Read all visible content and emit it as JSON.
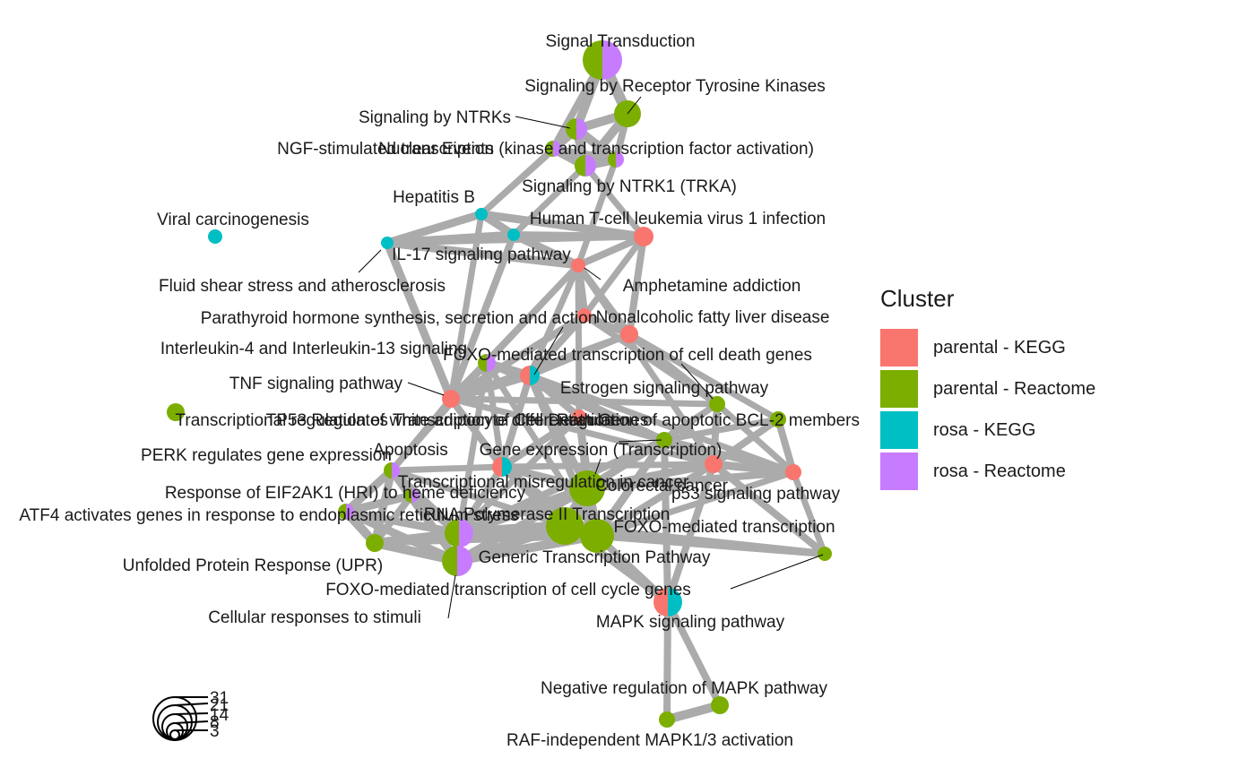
{
  "legend": {
    "title": "Cluster",
    "items": [
      {
        "label": "parental - KEGG",
        "color": "#F8766D"
      },
      {
        "label": "parental - Reactome",
        "color": "#7CAE00"
      },
      {
        "label": "rosa - KEGG",
        "color": "#00BFC4"
      },
      {
        "label": "rosa - Reactome",
        "color": "#C77CFF"
      }
    ]
  },
  "size_legend": {
    "values": [
      "31",
      "21",
      "14",
      "8",
      "3"
    ]
  },
  "edge_color": "#ABABAB",
  "nodes": [
    {
      "id": "signal_transduction",
      "label": "Signal Transduction",
      "slices": [
        [
          "rosa - Reactome",
          1
        ],
        [
          "parental - Reactome",
          1
        ]
      ]
    },
    {
      "id": "rtk",
      "label": "Signaling by Receptor Tyrosine Kinases",
      "slices": [
        [
          "parental - Reactome",
          1
        ]
      ]
    },
    {
      "id": "ntrks",
      "label": "Signaling by NTRKs",
      "slices": [
        [
          "rosa - Reactome",
          1
        ],
        [
          "parental - Reactome",
          1
        ]
      ]
    },
    {
      "id": "nuclear_events",
      "label": "Nuclear Events (kinase and transcription factor activation)",
      "slices": [
        [
          "rosa - Reactome",
          1
        ],
        [
          "parental - Reactome",
          1
        ]
      ]
    },
    {
      "id": "ngf",
      "label": "NGF-stimulated transcription",
      "slices": [
        [
          "rosa - Reactome",
          1
        ],
        [
          "parental - Reactome",
          1
        ]
      ]
    },
    {
      "id": "ntrk1",
      "label": "Signaling by NTRK1 (TRKA)",
      "slices": [
        [
          "rosa - Reactome",
          1
        ],
        [
          "parental - Reactome",
          1
        ]
      ]
    },
    {
      "id": "hepatitis_b",
      "label": "Hepatitis B",
      "slices": [
        [
          "rosa - KEGG",
          1
        ]
      ]
    },
    {
      "id": "htlv",
      "label": "Human T-cell leukemia virus 1 infection",
      "slices": [
        [
          "rosa - KEGG",
          1
        ]
      ]
    },
    {
      "id": "viral_carcinogenesis",
      "label": "Viral carcinogenesis",
      "slices": [
        [
          "rosa - KEGG",
          1
        ]
      ]
    },
    {
      "id": "il17",
      "label": "IL-17 signaling pathway",
      "slices": [
        [
          "rosa - KEGG",
          1
        ]
      ]
    },
    {
      "id": "fluid_shear",
      "label": "Fluid shear stress and atherosclerosis",
      "slices": [
        [
          "parental - KEGG",
          1
        ]
      ]
    },
    {
      "id": "amphetamine",
      "label": "Amphetamine addiction",
      "slices": [
        [
          "parental - KEGG",
          1
        ]
      ]
    },
    {
      "id": "parathyroid",
      "label": "Parathyroid hormone synthesis, secretion and action",
      "slices": [
        [
          "parental - KEGG",
          1
        ]
      ]
    },
    {
      "id": "nafld",
      "label": "Nonalcoholic fatty liver disease",
      "slices": [
        [
          "parental - KEGG",
          1
        ]
      ]
    },
    {
      "id": "il4_il13",
      "label": "Interleukin-4 and Interleukin-13 signaling",
      "slices": [
        [
          "rosa - Reactome",
          1
        ],
        [
          "parental - Reactome",
          1
        ]
      ]
    },
    {
      "id": "foxo_death",
      "label": "FOXO-mediated transcription of cell death genes",
      "slices": [
        [
          "rosa - KEGG",
          1
        ],
        [
          "parental - KEGG",
          1
        ]
      ]
    },
    {
      "id": "tnf",
      "label": "TNF signaling pathway",
      "slices": [
        [
          "parental - KEGG",
          1
        ]
      ]
    },
    {
      "id": "estrogen",
      "label": "Estrogen signaling pathway",
      "slices": [
        [
          "parental - Reactome",
          1
        ]
      ]
    },
    {
      "id": "transcriptional_regulation",
      "label": "Transcriptional regulation of white adipocyte differentiation",
      "slices": [
        [
          "parental - Reactome",
          1
        ]
      ]
    },
    {
      "id": "bcl2",
      "label": "Regulation of apoptotic BCL-2 members",
      "slices": [
        [
          "parental - Reactome",
          1
        ]
      ]
    },
    {
      "id": "tp53",
      "label": "TP53 Regulates Transcription of Cell Death Genes",
      "slices": [
        [
          "parental - KEGG",
          1
        ]
      ]
    },
    {
      "id": "perk",
      "label": "PERK regulates gene expression",
      "slices": [
        [
          "rosa - Reactome",
          1
        ],
        [
          "parental - Reactome",
          1
        ]
      ]
    },
    {
      "id": "apoptosis",
      "label": "Apoptosis",
      "slices": [
        [
          "rosa - KEGG",
          1
        ],
        [
          "parental - KEGG",
          1
        ]
      ]
    },
    {
      "id": "gene_expression",
      "label": "Gene expression (Transcription)",
      "slices": [
        [
          "parental - Reactome",
          1
        ]
      ]
    },
    {
      "id": "misregulation",
      "label": "Transcriptional misregulation in cancer",
      "slices": [
        [
          "parental - KEGG",
          1
        ]
      ]
    },
    {
      "id": "colorectal",
      "label": "Colorectal cancer",
      "slices": [
        [
          "parental - KEGG",
          1
        ]
      ]
    },
    {
      "id": "eif2ak1",
      "label": "Response of EIF2AK1 (HRI) to heme deficiency",
      "slices": [
        [
          "rosa - Reactome",
          1
        ],
        [
          "parental - Reactome",
          1
        ]
      ]
    },
    {
      "id": "p53",
      "label": "p53 signaling pathway",
      "slices": [
        [
          "parental - Reactome",
          1
        ]
      ]
    },
    {
      "id": "atf4",
      "label": "ATF4 activates genes in response to endoplasmic reticulum stress",
      "slices": [
        [
          "rosa - Reactome",
          1
        ],
        [
          "parental - Reactome",
          1
        ]
      ]
    },
    {
      "id": "rnapol2",
      "label": "RNA Polymerase II Transcription",
      "slices": [
        [
          "rosa - Reactome",
          1
        ],
        [
          "parental - Reactome",
          1
        ]
      ]
    },
    {
      "id": "foxo_mediated",
      "label": "FOXO-mediated transcription",
      "slices": [
        [
          "parental - Reactome",
          1
        ]
      ]
    },
    {
      "id": "upr",
      "label": "Unfolded Protein Response (UPR)",
      "slices": [
        [
          "parental - Reactome",
          1
        ]
      ]
    },
    {
      "id": "generic_transcription",
      "label": "Generic Transcription Pathway",
      "slices": [
        [
          "parental - Reactome",
          1
        ]
      ]
    },
    {
      "id": "foxo_cell_cycle",
      "label": "FOXO-mediated transcription of cell cycle genes",
      "slices": [
        [
          "parental - Reactome",
          1
        ]
      ]
    },
    {
      "id": "cellular_responses",
      "label": "Cellular responses to stimuli",
      "slices": [
        [
          "rosa - Reactome",
          1
        ],
        [
          "parental - Reactome",
          1
        ]
      ]
    },
    {
      "id": "mapk",
      "label": "MAPK signaling pathway",
      "slices": [
        [
          "rosa - KEGG",
          1
        ],
        [
          "parental - KEGG",
          1
        ]
      ]
    },
    {
      "id": "neg_mapk",
      "label": "Negative regulation of MAPK pathway",
      "slices": [
        [
          "parental - Reactome",
          1
        ]
      ]
    },
    {
      "id": "raf_independent",
      "label": "RAF-independent MAPK1/3 activation",
      "slices": [
        [
          "parental - Reactome",
          1
        ]
      ]
    }
  ]
}
